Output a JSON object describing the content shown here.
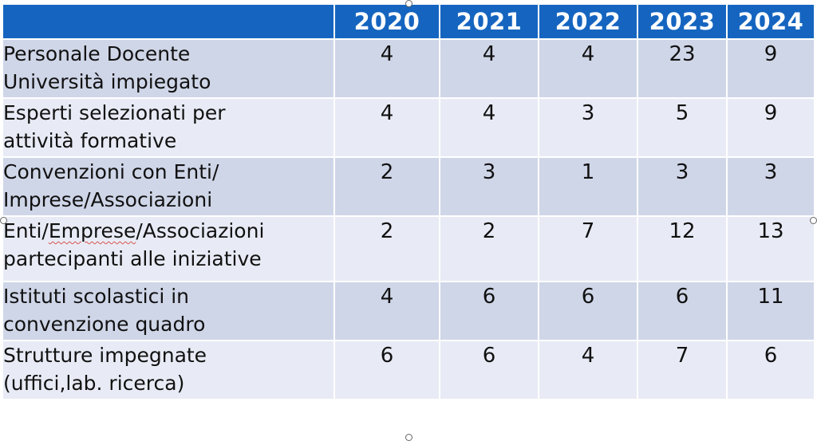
{
  "table": {
    "corner": "",
    "years": [
      "2020",
      "2021",
      "2022",
      "2023",
      "2024"
    ],
    "rows": [
      {
        "label_line1": "Personale Docente",
        "label_line2": "Università impiegato",
        "values": [
          "4",
          "4",
          "4",
          "23",
          "9"
        ]
      },
      {
        "label_line1": "Esperti selezionati per",
        "label_line2": "attività formative",
        "values": [
          "4",
          "4",
          "3",
          "5",
          "9"
        ]
      },
      {
        "label_line1": "Convenzioni con Enti/",
        "label_line2": "Imprese/Associazioni",
        "values": [
          "2",
          "3",
          "1",
          "3",
          "3"
        ]
      },
      {
        "label_line1_a": "Enti/",
        "label_line1_b": "Emprese",
        "label_line1_c": "/Associazioni",
        "label_line2": "partecipanti alle iniziative",
        "values": [
          "2",
          "2",
          "7",
          "12",
          "13"
        ]
      },
      {
        "label_line1": "Istituti scolastici in",
        "label_line2": "convenzione quadro",
        "values": [
          "4",
          "6",
          "6",
          "6",
          "11"
        ]
      },
      {
        "label_line1": "Strutture impegnate",
        "label_line2": "(uffici,lab. ricerca)",
        "values": [
          "6",
          "6",
          "4",
          "7",
          "6"
        ]
      }
    ]
  },
  "colors": {
    "header_bg": "#1565c0",
    "row_odd_bg": "#cfd6e8",
    "row_even_bg": "#e8ebf5",
    "spellcheck_underline": "#d9534f"
  }
}
